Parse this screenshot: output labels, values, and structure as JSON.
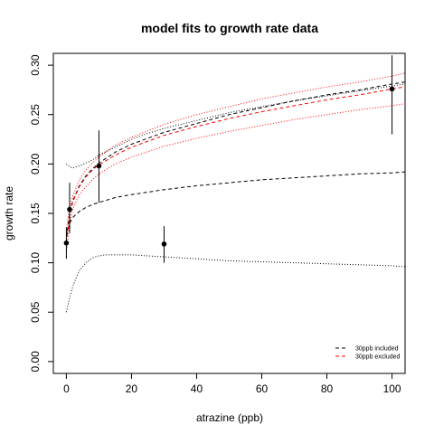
{
  "chart_data": {
    "type": "scatter",
    "title": "model fits to growth rate data",
    "xlabel": "atrazine (ppb)",
    "ylabel": "growth rate",
    "xlim": [
      -4,
      104
    ],
    "ylim": [
      -0.012,
      0.312
    ],
    "x_ticks": [
      0,
      20,
      40,
      60,
      80,
      100
    ],
    "x_tick_labels": [
      "0",
      "20",
      "40",
      "60",
      "80",
      "100"
    ],
    "y_ticks": [
      0.0,
      0.05,
      0.1,
      0.15,
      0.2,
      0.25,
      0.3
    ],
    "y_tick_labels": [
      "0.00",
      "0.05",
      "0.10",
      "0.15",
      "0.20",
      "0.25",
      "0.30"
    ],
    "points": [
      {
        "x": 0,
        "y": 0.12,
        "lo": 0.104,
        "hi": 0.136
      },
      {
        "x": 1,
        "y": 0.154,
        "lo": 0.13,
        "hi": 0.181
      },
      {
        "x": 10,
        "y": 0.198,
        "lo": 0.161,
        "hi": 0.234
      },
      {
        "x": 30,
        "y": 0.119,
        "lo": 0.1,
        "hi": 0.137
      },
      {
        "x": 100,
        "y": 0.276,
        "lo": 0.23,
        "hi": 0.31
      }
    ],
    "series": [
      {
        "name": "30ppb included",
        "color": "#000000",
        "dash": "dashed",
        "x": [
          0,
          1,
          2,
          4,
          6,
          8,
          10,
          15,
          20,
          30,
          40,
          50,
          60,
          70,
          80,
          90,
          100,
          104
        ],
        "y": [
          0.128,
          0.14,
          0.146,
          0.152,
          0.156,
          0.159,
          0.161,
          0.166,
          0.169,
          0.174,
          0.178,
          0.181,
          0.184,
          0.186,
          0.188,
          0.19,
          0.191,
          0.192
        ]
      },
      {
        "color": "#000000",
        "dash": "dotted",
        "x": [
          0,
          1,
          2,
          4,
          6,
          8,
          10,
          15,
          20,
          25,
          30,
          40,
          50,
          60,
          70,
          80,
          90,
          100,
          104
        ],
        "y": [
          0.2,
          0.197,
          0.196,
          0.198,
          0.201,
          0.204,
          0.209,
          0.217,
          0.225,
          0.231,
          0.236,
          0.244,
          0.252,
          0.258,
          0.264,
          0.269,
          0.274,
          0.279,
          0.281
        ]
      },
      {
        "color": "#000000",
        "dash": "dotted",
        "x": [
          0,
          1,
          2,
          3,
          4,
          6,
          8,
          10,
          12,
          15,
          20,
          25,
          30,
          40,
          50,
          60,
          70,
          80,
          90,
          100,
          104
        ],
        "y": [
          0.05,
          0.065,
          0.076,
          0.085,
          0.092,
          0.1,
          0.105,
          0.107,
          0.108,
          0.108,
          0.108,
          0.107,
          0.106,
          0.104,
          0.102,
          0.101,
          0.1,
          0.099,
          0.098,
          0.097,
          0.096
        ]
      },
      {
        "color": "#000000",
        "dash": "dashed",
        "x": [
          0,
          1,
          2,
          4,
          6,
          8,
          10,
          15,
          20,
          30,
          40,
          50,
          60,
          70,
          80,
          90,
          100,
          104
        ],
        "y": [
          0.126,
          0.15,
          0.163,
          0.178,
          0.188,
          0.195,
          0.201,
          0.212,
          0.22,
          0.232,
          0.241,
          0.25,
          0.257,
          0.264,
          0.27,
          0.275,
          0.281,
          0.283
        ]
      },
      {
        "name": "30ppb excluded",
        "color": "#ff0000",
        "dash": "dashed",
        "x": [
          0,
          1,
          2,
          4,
          6,
          8,
          10,
          15,
          20,
          30,
          40,
          50,
          60,
          70,
          80,
          90,
          100,
          104
        ],
        "y": [
          0.12,
          0.148,
          0.162,
          0.177,
          0.187,
          0.194,
          0.199,
          0.209,
          0.217,
          0.229,
          0.238,
          0.246,
          0.253,
          0.259,
          0.265,
          0.27,
          0.276,
          0.278
        ]
      },
      {
        "color": "#ff0000",
        "dash": "dotted",
        "x": [
          0,
          1,
          2,
          4,
          6,
          8,
          10,
          15,
          20,
          30,
          40,
          50,
          60,
          70,
          80,
          90,
          100,
          104
        ],
        "y": [
          0.135,
          0.155,
          0.168,
          0.184,
          0.194,
          0.201,
          0.207,
          0.219,
          0.227,
          0.24,
          0.25,
          0.258,
          0.266,
          0.272,
          0.278,
          0.283,
          0.289,
          0.292
        ]
      },
      {
        "color": "#ff0000",
        "dash": "dotted",
        "x": [
          0,
          1,
          2,
          4,
          6,
          8,
          10,
          15,
          20,
          30,
          40,
          50,
          60,
          70,
          80,
          90,
          100,
          104
        ],
        "y": [
          0.11,
          0.14,
          0.155,
          0.169,
          0.177,
          0.184,
          0.19,
          0.2,
          0.207,
          0.218,
          0.226,
          0.233,
          0.239,
          0.245,
          0.25,
          0.255,
          0.259,
          0.261
        ]
      }
    ],
    "legend": {
      "placement": "bottom-right",
      "entries": [
        {
          "label": "30ppb included",
          "color": "#000000",
          "dash": "dashed"
        },
        {
          "label": "30ppb excluded",
          "color": "#ff0000",
          "dash": "dashed"
        }
      ]
    },
    "grid": false
  }
}
